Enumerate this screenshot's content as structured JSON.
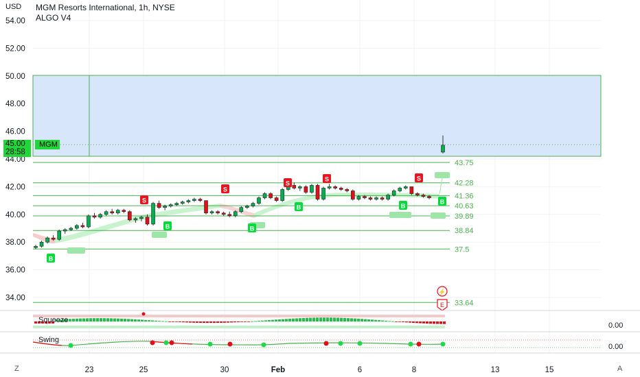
{
  "header": {
    "currency": "USD",
    "title": "MGM Resorts International, 1h, NYSE",
    "indicator": "ALGO V4"
  },
  "price_tag": {
    "price": "45.00",
    "countdown": "28:58",
    "symbol": "MGM"
  },
  "colors": {
    "up": "#00b050",
    "down": "#e0101a",
    "buy_badge": "#00dd3b",
    "sell_badge": "#e8141e",
    "zone_fill": "#d7e6fb",
    "level_line": "#4caf50",
    "level_text": "#4caf50"
  },
  "y_axis_ticks": [
    "54.00",
    "52.00",
    "50.00",
    "48.00",
    "46.00",
    "44.00",
    "42.00",
    "40.00",
    "38.00",
    "36.00",
    "34.00"
  ],
  "x_axis_ticks": [
    "23",
    "25",
    "30",
    "Feb",
    "6",
    "8",
    "13",
    "15"
  ],
  "levels": [
    "43.75",
    "42.28",
    "41.36",
    "40.63",
    "39.89",
    "38.84",
    "37.5",
    "33.64"
  ],
  "signals": {
    "buy": "B",
    "sell": "S",
    "exit": "E"
  },
  "panes": {
    "squeeze": {
      "label": "Squeeze",
      "value": "0.00"
    },
    "swing": {
      "label": "Swing",
      "value": "0.00"
    }
  },
  "corners": {
    "left": "Z",
    "right": "A"
  },
  "chart_data": {
    "type": "candlestick",
    "title": "MGM Resorts International, 1h, NYSE",
    "ylabel": "USD",
    "ylim": [
      33,
      55
    ],
    "x_ticks": [
      "23",
      "25",
      "30",
      "Feb",
      "6",
      "8",
      "13",
      "15"
    ],
    "y_ticks": [
      54,
      52,
      50,
      48,
      46,
      44,
      42,
      40,
      38,
      36,
      34
    ],
    "zone": {
      "from": 44.15,
      "to": 50.0
    },
    "levels": [
      43.75,
      42.28,
      41.36,
      40.63,
      39.89,
      38.84,
      37.5,
      33.64
    ],
    "last_price": 45.0,
    "candles_ohlc": [
      [
        37.6,
        37.8,
        37.5,
        37.7
      ],
      [
        37.7,
        38.1,
        37.6,
        38.0
      ],
      [
        38.0,
        38.4,
        37.9,
        38.3
      ],
      [
        38.3,
        38.5,
        38.1,
        38.2
      ],
      [
        38.2,
        38.9,
        38.1,
        38.8
      ],
      [
        38.8,
        39.0,
        38.6,
        38.9
      ],
      [
        38.9,
        39.1,
        38.8,
        39.0
      ],
      [
        39.0,
        39.3,
        38.9,
        39.2
      ],
      [
        39.2,
        39.4,
        39.0,
        39.1
      ],
      [
        39.1,
        40.0,
        39.0,
        39.9
      ],
      [
        39.9,
        40.1,
        39.7,
        39.8
      ],
      [
        39.8,
        40.1,
        39.7,
        40.0
      ],
      [
        40.0,
        40.3,
        39.9,
        40.2
      ],
      [
        40.2,
        40.4,
        40.0,
        40.1
      ],
      [
        40.1,
        40.4,
        40.0,
        40.3
      ],
      [
        40.3,
        40.4,
        40.1,
        40.2
      ],
      [
        40.2,
        40.3,
        39.5,
        39.6
      ],
      [
        39.6,
        39.8,
        39.4,
        39.7
      ],
      [
        39.7,
        39.9,
        39.5,
        39.8
      ],
      [
        39.8,
        40.0,
        39.2,
        39.3
      ],
      [
        39.3,
        40.9,
        39.2,
        40.8
      ],
      [
        40.8,
        41.0,
        40.4,
        40.5
      ],
      [
        40.5,
        40.7,
        40.3,
        40.6
      ],
      [
        40.6,
        40.8,
        40.5,
        40.7
      ],
      [
        40.7,
        40.9,
        40.6,
        40.8
      ],
      [
        40.8,
        41.0,
        40.7,
        40.9
      ],
      [
        40.9,
        41.1,
        40.8,
        41.0
      ],
      [
        41.0,
        41.2,
        40.9,
        41.1
      ],
      [
        41.1,
        41.2,
        40.9,
        41.0
      ],
      [
        41.0,
        40.9,
        40.0,
        40.1
      ],
      [
        40.1,
        40.3,
        40.0,
        40.2
      ],
      [
        40.2,
        40.3,
        40.0,
        40.1
      ],
      [
        40.1,
        40.2,
        39.9,
        40.0
      ],
      [
        40.0,
        40.2,
        39.8,
        39.9
      ],
      [
        39.9,
        40.3,
        39.8,
        40.2
      ],
      [
        40.2,
        40.6,
        40.1,
        40.5
      ],
      [
        40.5,
        40.7,
        40.4,
        40.6
      ],
      [
        40.6,
        40.9,
        40.5,
        40.8
      ],
      [
        40.8,
        41.3,
        40.7,
        41.2
      ],
      [
        41.2,
        41.6,
        41.1,
        41.5
      ],
      [
        41.5,
        41.6,
        41.1,
        41.2
      ],
      [
        41.2,
        41.3,
        40.9,
        41.0
      ],
      [
        41.0,
        41.9,
        40.9,
        41.8
      ],
      [
        41.8,
        42.2,
        41.7,
        42.1
      ],
      [
        42.1,
        42.3,
        41.8,
        41.9
      ],
      [
        41.9,
        42.1,
        41.7,
        42.0
      ],
      [
        42.0,
        42.1,
        41.5,
        41.6
      ],
      [
        41.6,
        42.2,
        41.5,
        42.1
      ],
      [
        42.1,
        42.2,
        41.0,
        41.1
      ],
      [
        41.1,
        42.0,
        41.0,
        41.9
      ],
      [
        41.9,
        42.2,
        41.8,
        42.0
      ],
      [
        42.0,
        42.1,
        41.8,
        41.9
      ],
      [
        41.9,
        42.0,
        41.7,
        41.8
      ],
      [
        41.8,
        41.9,
        41.6,
        41.7
      ],
      [
        41.7,
        41.8,
        41.0,
        41.1
      ],
      [
        41.1,
        41.4,
        41.0,
        41.3
      ],
      [
        41.3,
        41.4,
        41.1,
        41.2
      ],
      [
        41.2,
        41.3,
        41.0,
        41.1
      ],
      [
        41.1,
        41.3,
        41.0,
        41.2
      ],
      [
        41.2,
        41.3,
        41.0,
        41.1
      ],
      [
        41.1,
        41.5,
        41.0,
        41.4
      ],
      [
        41.4,
        41.8,
        41.3,
        41.7
      ],
      [
        41.7,
        42.0,
        41.6,
        41.9
      ],
      [
        41.9,
        42.1,
        41.8,
        42.0
      ],
      [
        42.0,
        42.0,
        41.4,
        41.5
      ],
      [
        41.5,
        41.6,
        41.3,
        41.4
      ],
      [
        41.4,
        41.5,
        41.2,
        41.3
      ],
      [
        41.3,
        41.4,
        41.1,
        41.2
      ],
      [
        44.5,
        45.7,
        44.4,
        45.0
      ]
    ]
  }
}
